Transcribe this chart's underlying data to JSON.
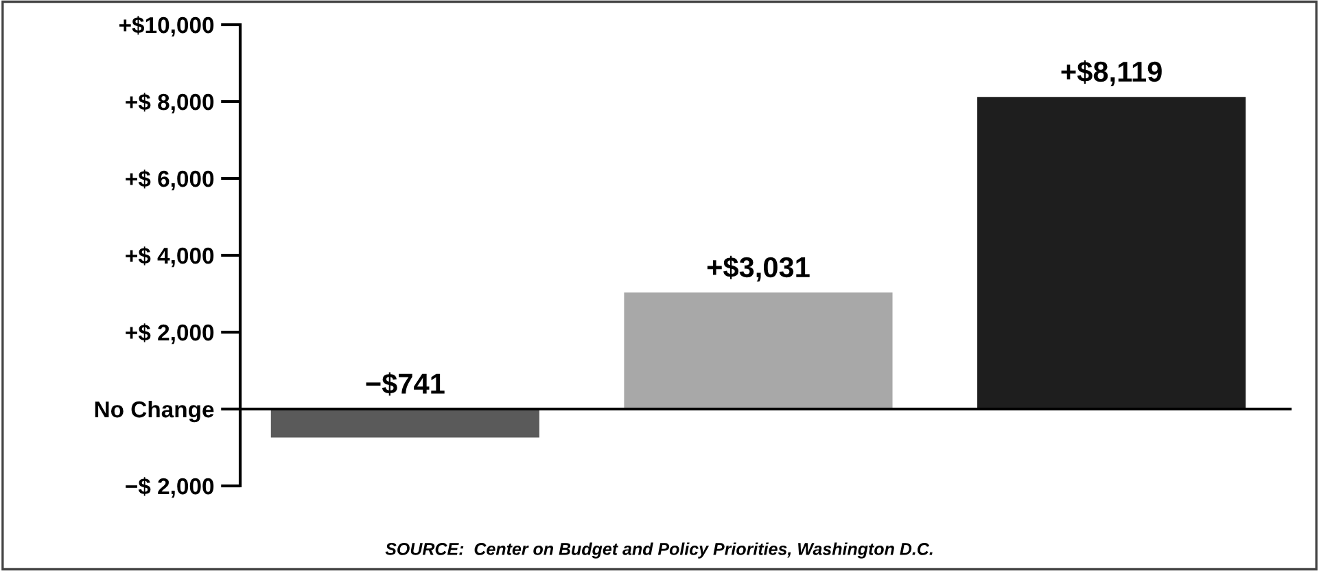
{
  "chart_data": {
    "type": "bar",
    "categories": [
      null,
      null,
      null
    ],
    "values": [
      -741,
      3031,
      8119
    ],
    "colors": [
      "#5a5a5a",
      "#a8a8a8",
      "#1e1e1e"
    ],
    "value_labels": [
      "−$741",
      "+$3,031",
      "+$8,119"
    ],
    "ylim": [
      -2000,
      10000
    ],
    "yticks": [
      {
        "value": -2000,
        "label": "−$ 2,000"
      },
      {
        "value": 0,
        "label": "No Change"
      },
      {
        "value": 2000,
        "label": "+$ 2,000"
      },
      {
        "value": 4000,
        "label": "+$ 4,000"
      },
      {
        "value": 6000,
        "label": "+$ 6,000"
      },
      {
        "value": 8000,
        "label": "+$ 8,000"
      },
      {
        "value": 10000,
        "label": "+$10,000"
      }
    ],
    "annotations": [
      "SOURCE:  Center on Budget and Policy Priorities, Washington D.C."
    ]
  }
}
